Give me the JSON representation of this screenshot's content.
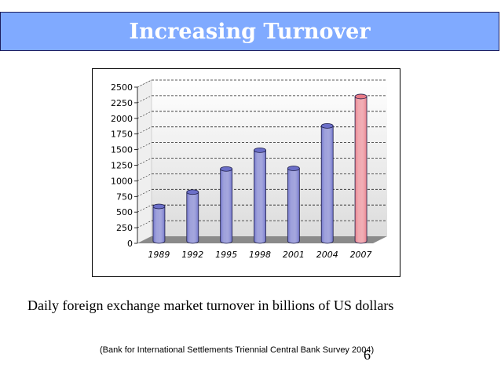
{
  "slide": {
    "title": "Increasing Turnover",
    "caption": "Daily foreign exchange market turnover in billions of US dollars",
    "source": "(Bank for International Settlements Triennial Central Bank Survey 2004)",
    "page_number": "6"
  },
  "colors": {
    "title_bar": "#80aaff",
    "title_text": "#ffffff",
    "bar_default": "#6b6fc8",
    "bar_highlight": "#e87a86",
    "floor": "#8a8a8a"
  },
  "chart_data": {
    "type": "bar",
    "title": "",
    "xlabel": "",
    "ylabel": "",
    "categories": [
      "1989",
      "1992",
      "1995",
      "1998",
      "2001",
      "2004",
      "2007"
    ],
    "values": [
      590,
      820,
      1190,
      1490,
      1200,
      1880,
      2350
    ],
    "highlight_index": 6,
    "ylim": [
      0,
      2500
    ],
    "yticks": [
      0,
      250,
      500,
      750,
      1000,
      1250,
      1500,
      1750,
      2000,
      2250,
      2500
    ],
    "grid": true,
    "legend": "none"
  }
}
